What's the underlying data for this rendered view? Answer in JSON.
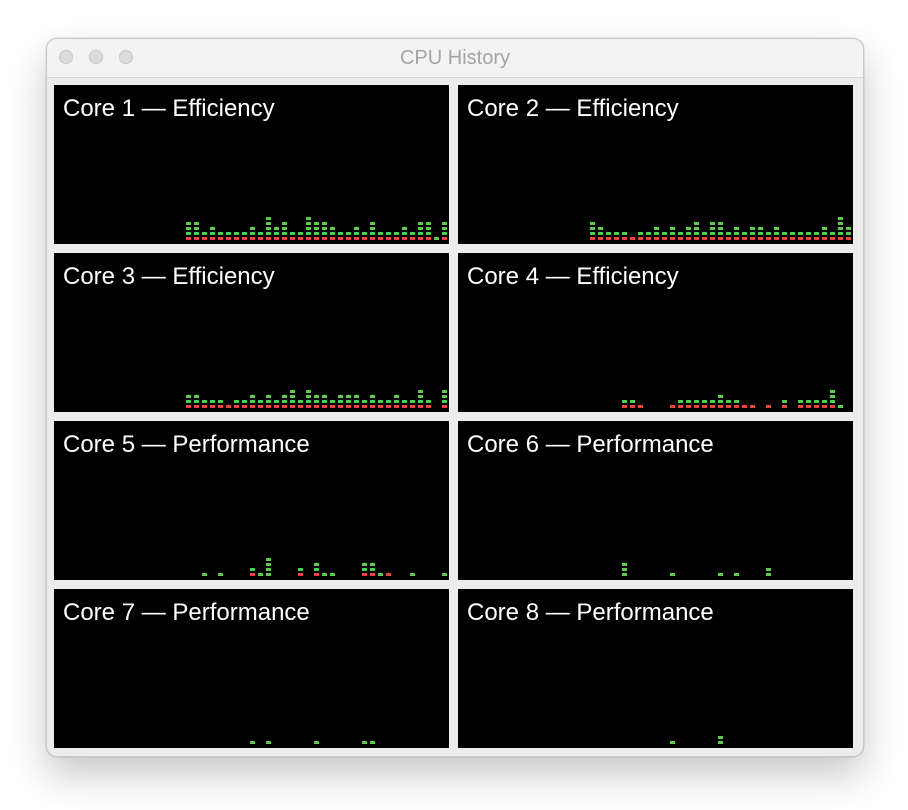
{
  "window": {
    "title": "CPU History"
  },
  "colors": {
    "user": "#5fc94e",
    "system": "#e8463a",
    "background": "#000000"
  },
  "panels": [
    {
      "label": "Core 1 — Efficiency",
      "system": [
        0,
        0,
        0,
        0,
        0,
        0,
        0,
        0,
        0,
        0,
        0,
        0,
        0,
        0,
        0,
        0,
        0,
        0,
        1,
        1,
        1,
        1,
        1,
        1,
        1,
        1,
        1,
        1,
        1,
        1,
        1,
        1,
        1,
        1,
        1,
        1,
        1,
        1,
        1,
        1,
        1,
        1,
        1,
        1,
        1,
        1,
        1,
        1,
        1,
        0,
        1
      ],
      "user": [
        0,
        0,
        0,
        0,
        0,
        0,
        0,
        0,
        0,
        0,
        0,
        0,
        0,
        0,
        0,
        0,
        0,
        0,
        3,
        3,
        1,
        2,
        1,
        1,
        1,
        1,
        2,
        1,
        4,
        2,
        3,
        1,
        1,
        4,
        3,
        3,
        2,
        1,
        1,
        2,
        1,
        3,
        1,
        1,
        1,
        2,
        1,
        3,
        3,
        1,
        3
      ]
    },
    {
      "label": "Core 2 — Efficiency",
      "system": [
        0,
        0,
        0,
        0,
        0,
        0,
        0,
        0,
        0,
        0,
        0,
        0,
        0,
        0,
        0,
        0,
        0,
        0,
        1,
        1,
        1,
        1,
        1,
        1,
        1,
        1,
        1,
        1,
        1,
        1,
        1,
        1,
        1,
        1,
        1,
        1,
        1,
        1,
        1,
        1,
        1,
        1,
        1,
        1,
        1,
        1,
        1,
        1,
        1,
        1,
        1
      ],
      "user": [
        0,
        0,
        0,
        0,
        0,
        0,
        0,
        0,
        0,
        0,
        0,
        0,
        0,
        0,
        0,
        0,
        0,
        0,
        3,
        2,
        1,
        1,
        1,
        0,
        1,
        1,
        2,
        1,
        2,
        1,
        2,
        3,
        1,
        3,
        3,
        1,
        2,
        1,
        2,
        2,
        1,
        2,
        1,
        1,
        1,
        1,
        1,
        2,
        1,
        4,
        2
      ]
    },
    {
      "label": "Core 3 — Efficiency",
      "system": [
        0,
        0,
        0,
        0,
        0,
        0,
        0,
        0,
        0,
        0,
        0,
        0,
        0,
        0,
        0,
        0,
        0,
        0,
        1,
        1,
        1,
        1,
        1,
        1,
        1,
        1,
        1,
        1,
        1,
        1,
        1,
        1,
        1,
        1,
        1,
        1,
        1,
        1,
        1,
        1,
        1,
        1,
        1,
        1,
        1,
        1,
        1,
        1,
        1,
        0,
        1
      ],
      "user": [
        0,
        0,
        0,
        0,
        0,
        0,
        0,
        0,
        0,
        0,
        0,
        0,
        0,
        0,
        0,
        0,
        0,
        0,
        2,
        2,
        1,
        1,
        1,
        0,
        1,
        1,
        2,
        1,
        2,
        1,
        2,
        3,
        1,
        3,
        2,
        2,
        1,
        2,
        2,
        2,
        1,
        2,
        1,
        1,
        2,
        1,
        1,
        3,
        1,
        0,
        3
      ]
    },
    {
      "label": "Core 4 — Efficiency",
      "system": [
        0,
        0,
        0,
        0,
        0,
        0,
        0,
        0,
        0,
        0,
        0,
        0,
        0,
        0,
        0,
        0,
        0,
        0,
        1,
        1,
        1,
        0,
        0,
        0,
        1,
        1,
        1,
        1,
        1,
        1,
        1,
        1,
        1,
        1,
        1,
        0,
        1,
        0,
        1,
        0,
        1,
        1,
        1,
        1,
        1,
        0,
        0
      ],
      "user": [
        0,
        0,
        0,
        0,
        0,
        0,
        0,
        0,
        0,
        0,
        0,
        0,
        0,
        0,
        0,
        0,
        0,
        0,
        1,
        1,
        0,
        0,
        0,
        0,
        0,
        1,
        1,
        1,
        1,
        1,
        2,
        1,
        1,
        0,
        0,
        0,
        0,
        0,
        1,
        0,
        1,
        1,
        1,
        1,
        3,
        1,
        0
      ]
    },
    {
      "label": "Core 5 — Performance",
      "system": [
        0,
        0,
        0,
        0,
        0,
        0,
        0,
        0,
        0,
        0,
        0,
        0,
        0,
        0,
        0,
        0,
        0,
        0,
        0,
        0,
        0,
        0,
        0,
        0,
        0,
        0,
        1,
        0,
        0,
        0,
        0,
        0,
        1,
        0,
        1,
        0,
        0,
        0,
        0,
        0,
        1,
        1,
        0,
        1,
        0,
        0,
        0,
        0,
        0,
        0,
        0
      ],
      "user": [
        0,
        0,
        0,
        0,
        0,
        0,
        0,
        0,
        0,
        0,
        0,
        0,
        0,
        0,
        0,
        0,
        0,
        0,
        0,
        0,
        1,
        0,
        1,
        0,
        0,
        0,
        1,
        1,
        4,
        0,
        0,
        0,
        1,
        0,
        2,
        1,
        1,
        0,
        0,
        0,
        2,
        2,
        1,
        0,
        0,
        0,
        1,
        0,
        0,
        0,
        1
      ]
    },
    {
      "label": "Core 6 — Performance",
      "system": [
        0,
        0,
        0,
        0,
        0,
        0,
        0,
        0,
        0,
        0,
        0,
        0,
        0,
        0,
        0,
        0,
        0,
        0,
        0,
        0,
        0,
        0,
        0,
        0,
        0,
        0,
        0,
        0,
        0,
        0,
        0,
        0,
        0,
        0,
        0,
        0,
        0,
        0,
        0,
        0,
        0,
        0,
        0,
        0,
        0,
        0,
        0,
        0,
        0,
        0,
        0
      ],
      "user": [
        0,
        0,
        0,
        0,
        0,
        0,
        0,
        0,
        0,
        0,
        0,
        0,
        0,
        0,
        0,
        0,
        0,
        0,
        0,
        0,
        0,
        0,
        3,
        0,
        0,
        0,
        0,
        0,
        1,
        0,
        0,
        0,
        0,
        0,
        1,
        0,
        1,
        0,
        0,
        0,
        2,
        0,
        0,
        0,
        0,
        0,
        0,
        0,
        0,
        0,
        0
      ]
    },
    {
      "label": "Core 7 — Performance",
      "system": [
        0,
        0,
        0,
        0,
        0,
        0,
        0,
        0,
        0,
        0,
        0,
        0,
        0,
        0,
        0,
        0,
        0,
        0,
        0,
        0,
        0,
        0,
        0,
        0,
        0,
        0,
        0,
        0,
        0,
        0,
        0,
        0,
        0,
        0,
        0,
        0,
        0,
        0,
        0,
        0,
        0,
        0,
        0,
        0,
        0,
        0,
        0,
        0,
        0,
        0,
        0
      ],
      "user": [
        0,
        0,
        0,
        0,
        0,
        0,
        0,
        0,
        0,
        0,
        0,
        0,
        0,
        0,
        0,
        0,
        0,
        0,
        0,
        0,
        0,
        0,
        0,
        0,
        0,
        0,
        1,
        0,
        1,
        0,
        0,
        0,
        0,
        0,
        1,
        0,
        0,
        0,
        0,
        0,
        1,
        1,
        0,
        0,
        0,
        0,
        0,
        0,
        0,
        0,
        0
      ]
    },
    {
      "label": "Core 8 — Performance",
      "system": [
        0,
        0,
        0,
        0,
        0,
        0,
        0,
        0,
        0,
        0,
        0,
        0,
        0,
        0,
        0,
        0,
        0,
        0,
        0,
        0,
        0,
        0,
        0,
        0,
        0,
        0,
        0,
        0,
        0,
        0,
        0,
        0,
        0,
        0,
        0,
        0,
        0,
        0,
        0,
        0,
        0,
        0,
        0,
        0,
        0,
        0,
        0,
        0,
        0,
        0,
        0
      ],
      "user": [
        0,
        0,
        0,
        0,
        0,
        0,
        0,
        0,
        0,
        0,
        0,
        0,
        0,
        0,
        0,
        0,
        0,
        0,
        0,
        0,
        0,
        0,
        0,
        0,
        0,
        0,
        0,
        0,
        1,
        0,
        0,
        0,
        0,
        0,
        2,
        0,
        0,
        0,
        0,
        0,
        0,
        0,
        0,
        0,
        0,
        0,
        0,
        0,
        0,
        0,
        0
      ]
    }
  ]
}
